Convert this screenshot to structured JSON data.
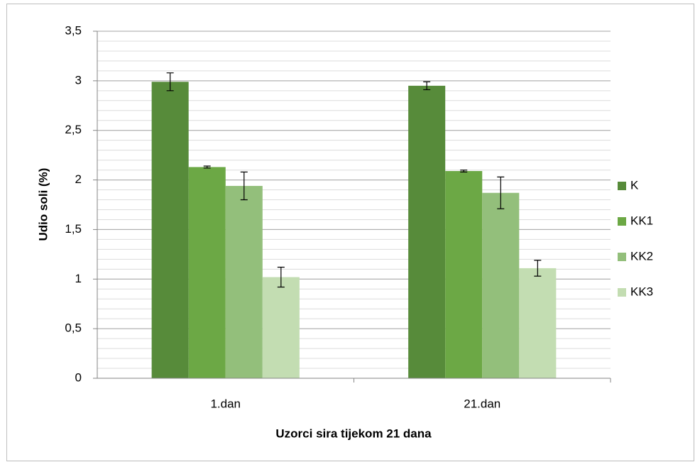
{
  "chart_data": {
    "type": "bar",
    "x_label": "Uzorci sira tijekom 21 dana",
    "y_label": "Udio soli (%)",
    "categories": [
      "1.dan",
      "21.dan"
    ],
    "series": [
      {
        "name": "K",
        "color": "#578b3a",
        "values": [
          2.99,
          2.95
        ],
        "errors": [
          0.09,
          0.04
        ]
      },
      {
        "name": "KK1",
        "color": "#6ca845",
        "values": [
          2.13,
          2.09
        ],
        "errors": [
          0.01,
          0.01
        ]
      },
      {
        "name": "KK2",
        "color": "#93bf7b",
        "values": [
          1.94,
          1.87
        ],
        "errors": [
          0.14,
          0.16
        ]
      },
      {
        "name": "KK3",
        "color": "#c3ddb2",
        "values": [
          1.02,
          1.11
        ],
        "errors": [
          0.1,
          0.08
        ]
      }
    ],
    "ylim": [
      0,
      3.5
    ],
    "yticks": [
      0,
      {
        "value": 0.5,
        "label": "0,5"
      },
      1,
      {
        "value": 1.5,
        "label": "1,5"
      },
      2,
      {
        "value": 2.5,
        "label": "2,5"
      },
      3,
      {
        "value": 3.5,
        "label": "3,5"
      }
    ],
    "grid": true,
    "minor_grid_step": 0.1,
    "legend": "right"
  }
}
